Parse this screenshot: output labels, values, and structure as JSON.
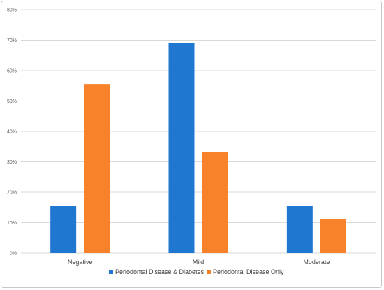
{
  "chart_data": {
    "type": "bar",
    "title": "",
    "xlabel": "",
    "ylabel": "",
    "categories": [
      "Negative",
      "Mild",
      "Moderate"
    ],
    "series": [
      {
        "name": "Periodontal Disease & Diabetes",
        "values": [
          15.4,
          69.2,
          15.4
        ],
        "color": "#1f77d0"
      },
      {
        "name": "Periodontal Disease Only",
        "values": [
          55.6,
          33.3,
          11.1
        ],
        "color": "#f7822a"
      }
    ],
    "ylim": [
      0,
      80
    ],
    "yticks": [
      "0%",
      "10%",
      "20%",
      "30%",
      "40%",
      "50%",
      "60%",
      "70%",
      "80%"
    ],
    "grid": true,
    "legend_position": "bottom"
  }
}
